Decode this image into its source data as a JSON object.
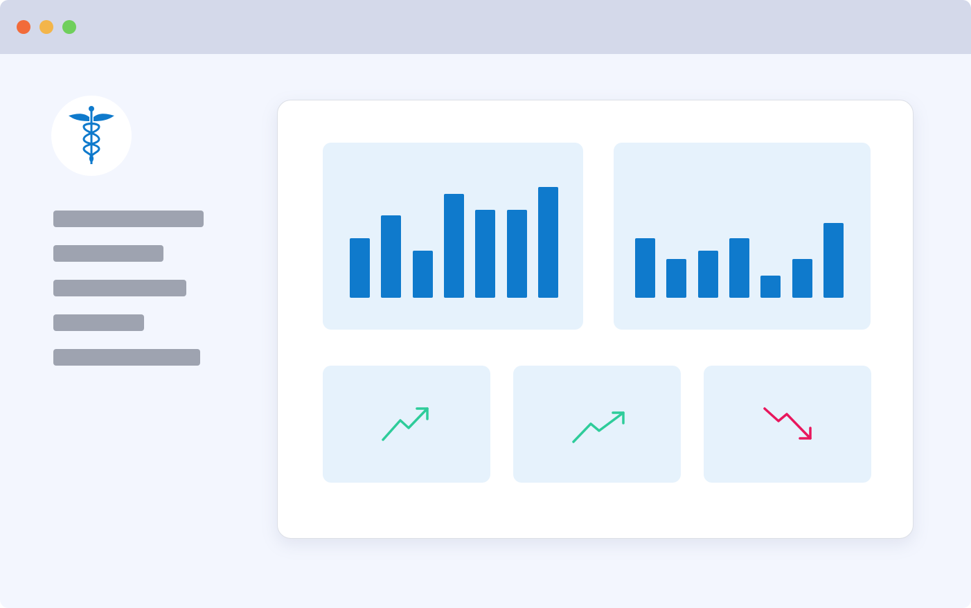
{
  "window": {
    "controls": [
      {
        "name": "close",
        "color": "#f26b3a"
      },
      {
        "name": "minimize",
        "color": "#f3b54a"
      },
      {
        "name": "maximize",
        "color": "#6fcf5c"
      }
    ]
  },
  "sidebar": {
    "logo_icon": "caduceus-icon",
    "items": [
      {
        "fill": 1.0
      },
      {
        "fill": 0.73
      },
      {
        "fill": 0.88
      },
      {
        "fill": 0.6
      },
      {
        "fill": 0.98
      }
    ]
  },
  "colors": {
    "bar": "#0f7acc",
    "panel": "#e6f2fc",
    "up": "#2ecc9a",
    "down": "#e8175d"
  },
  "charts": [
    {
      "type": "bar",
      "values": [
        86,
        119,
        68,
        150,
        127,
        127,
        160
      ]
    },
    {
      "type": "bar",
      "values": [
        86,
        56,
        68,
        86,
        32,
        56,
        108
      ]
    }
  ],
  "tiles": [
    {
      "trend": "up",
      "icon": "trending-up-icon"
    },
    {
      "trend": "up",
      "icon": "trending-up-icon"
    },
    {
      "trend": "down",
      "icon": "trending-down-icon"
    }
  ]
}
